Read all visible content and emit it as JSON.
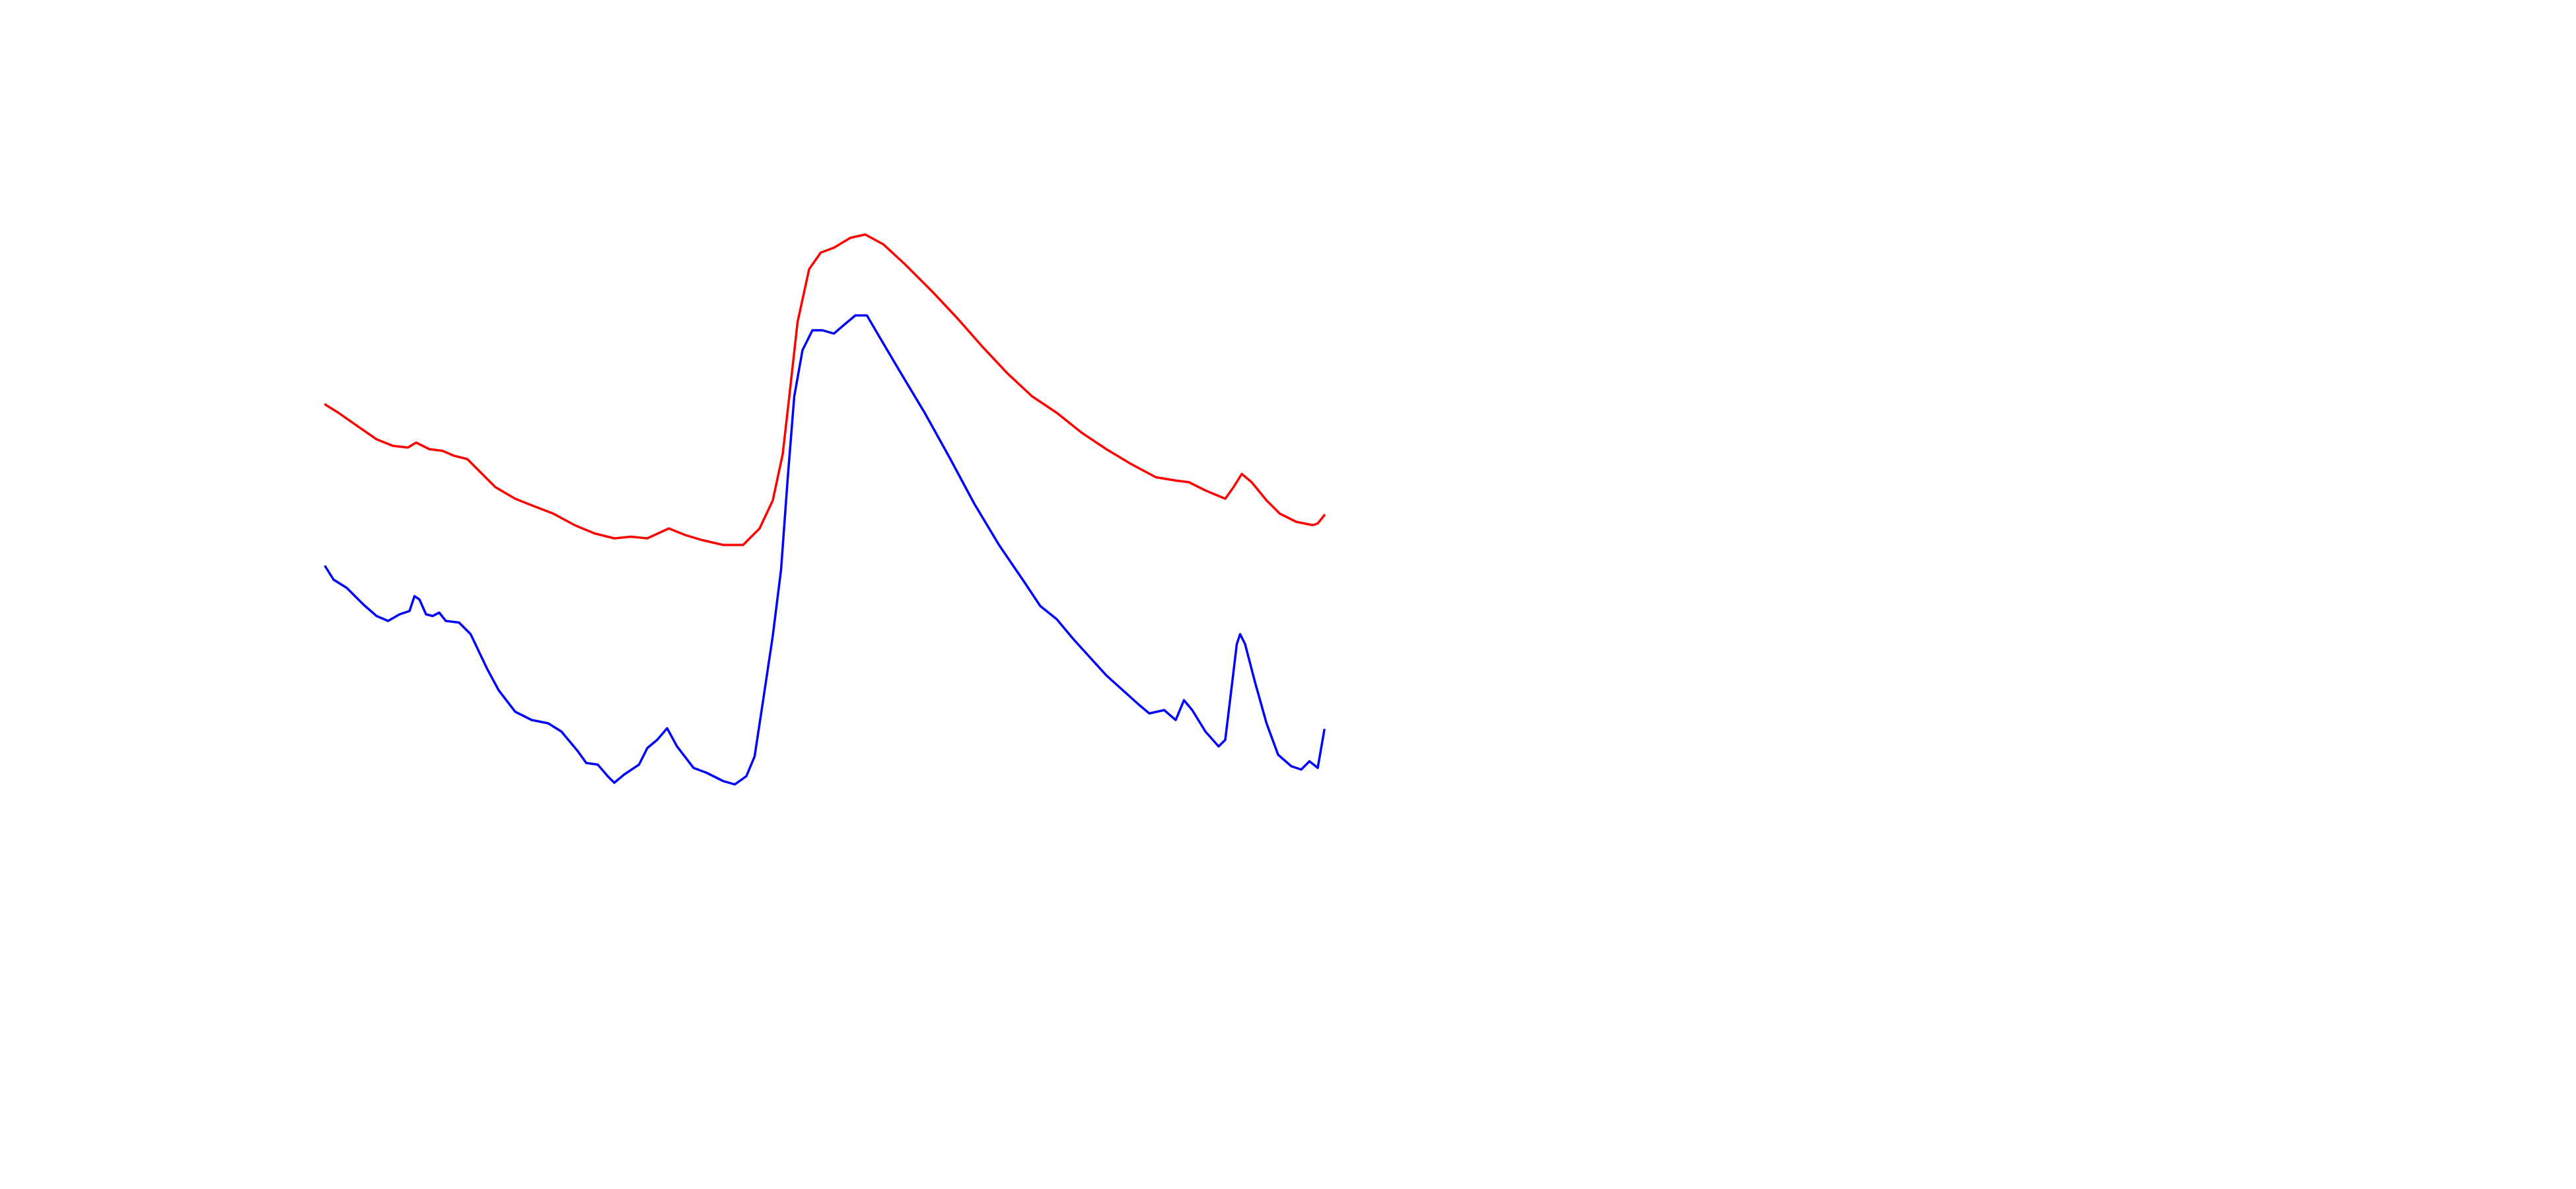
{
  "chart_data": {
    "type": "line",
    "xlim": [
      0,
      605
    ],
    "ylim": [
      0,
      720
    ],
    "series": [
      {
        "color": "#ff0000",
        "x": [
          0,
          8,
          18,
          31,
          41,
          50,
          55,
          63,
          71,
          78,
          86,
          93,
          103,
          115,
          125,
          138,
          151,
          163,
          175,
          185,
          195,
          208,
          218,
          228,
          241,
          253,
          263,
          271,
          277,
          281,
          286,
          293,
          300,
          308,
          318,
          327,
          338,
          351,
          368,
          383,
          398,
          413,
          428,
          443,
          458,
          473,
          488,
          503,
          515,
          523,
          533,
          545,
          550,
          555,
          561,
          570,
          578,
          588,
          598,
          601,
          605
        ],
        "values": [
          475,
          470,
          463,
          454,
          450,
          449,
          452,
          448,
          447,
          444,
          442,
          435,
          425,
          418,
          414,
          409,
          402,
          397,
          394,
          395,
          394,
          400,
          396,
          393,
          390,
          390,
          400,
          417,
          445,
          480,
          525,
          557,
          567,
          570,
          576,
          578,
          572,
          560,
          543,
          527,
          510,
          494,
          480,
          470,
          458,
          448,
          439,
          431,
          429,
          428,
          423,
          418,
          425,
          433,
          428,
          417,
          409,
          404,
          402,
          403,
          408
        ]
      },
      {
        "color": "#0000ff",
        "x": [
          0,
          5,
          13,
          23,
          31,
          38,
          45,
          51,
          54,
          57,
          61,
          65,
          69,
          73,
          81,
          88,
          98,
          105,
          115,
          125,
          135,
          143,
          153,
          158,
          165,
          171,
          175,
          181,
          190,
          195,
          201,
          207,
          213,
          223,
          231,
          241,
          248,
          255,
          260,
          265,
          271,
          276,
          280,
          284,
          289,
          295,
          301,
          308,
          315,
          321,
          328,
          335,
          348,
          363,
          378,
          393,
          408,
          423,
          433,
          443,
          453,
          463,
          473,
          483,
          493,
          499,
          508,
          515,
          520,
          525,
          533,
          541,
          545,
          549,
          552,
          554,
          557,
          563,
          570,
          577,
          585,
          591,
          596,
          601,
          605
        ],
        "values": [
          377,
          369,
          364,
          354,
          347,
          344,
          348,
          350,
          359,
          357,
          348,
          347,
          349,
          344,
          343,
          336,
          315,
          302,
          289,
          284,
          282,
          277,
          265,
          258,
          257,
          250,
          246,
          251,
          257,
          267,
          272,
          279,
          268,
          255,
          252,
          247,
          245,
          250,
          262,
          295,
          335,
          375,
          430,
          480,
          508,
          520,
          520,
          518,
          524,
          529,
          529,
          517,
          495,
          470,
          443,
          415,
          390,
          368,
          353,
          345,
          333,
          322,
          311,
          302,
          293,
          288,
          290,
          284,
          296,
          290,
          277,
          268,
          272,
          305,
          330,
          336,
          330,
          307,
          282,
          263,
          256,
          254,
          259,
          255,
          278
        ]
      }
    ]
  }
}
